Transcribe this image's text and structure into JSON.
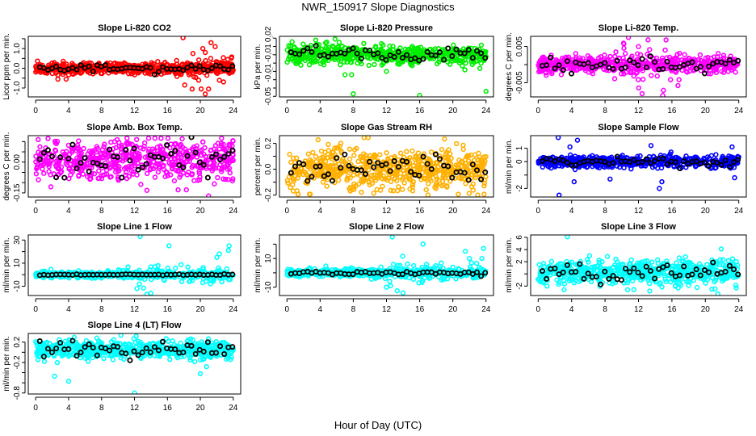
{
  "title": "NWR_150917  Slope Diagnostics",
  "xlabel": "Hour of Day (UTC)",
  "chart_data": [
    {
      "type": "scatter",
      "title": "Slope Li-820 CO2",
      "ylabel": "Licor ppm per min.",
      "color": "#ff0000",
      "xlim": [
        -0.9,
        24.9
      ],
      "xticks": [
        0,
        4,
        8,
        12,
        16,
        20,
        24
      ],
      "ylim": [
        -1.45,
        1.62
      ],
      "yticks": [
        -1.0,
        -0.5,
        0.0,
        0.5,
        1.0,
        1.5
      ],
      "ytick_labels": [
        {
          "v": -1.0,
          "t": "-1.0"
        },
        {
          "v": 0.0,
          "t": "0.0"
        },
        {
          "v": 1.0,
          "t": "1.0"
        }
      ],
      "cloud": {
        "n": 600,
        "center": 0.0,
        "sd": 0.14,
        "wide_sd": 0.3,
        "wide_hours": [
          17,
          24
        ]
      },
      "black": {
        "n": 48,
        "sd": 0.12
      },
      "outliers": [
        [
          17.9,
          1.55
        ],
        [
          21.3,
          1.3
        ],
        [
          21.8,
          1.1
        ],
        [
          20.3,
          1.0
        ],
        [
          20.6,
          0.8
        ],
        [
          19.1,
          0.75
        ],
        [
          20.6,
          -1.3
        ],
        [
          20.1,
          -1.05
        ],
        [
          21,
          -1.05
        ],
        [
          19,
          -1.05
        ],
        [
          18.1,
          -0.85
        ],
        [
          2.7,
          -0.55
        ],
        [
          3.7,
          -0.55
        ]
      ]
    },
    {
      "type": "scatter",
      "title": "Slope Li-820 Pressure",
      "ylabel": "kPa per min.",
      "color": "#00ee00",
      "xlim": [
        -0.9,
        24.9
      ],
      "xticks": [
        0,
        4,
        8,
        12,
        16,
        20,
        24
      ],
      "ylim": [
        -0.0507,
        0.0222
      ],
      "yticks": [
        0.02,
        0.01,
        0.0,
        -0.01,
        -0.02,
        -0.03,
        -0.04,
        -0.05
      ],
      "ytick_labels": [
        {
          "v": 0.02,
          "t": "0.02"
        },
        {
          "v": 0.0,
          "t": "-0.01"
        },
        {
          "v": -0.015,
          "t": "-0.01"
        },
        {
          "v": -0.05,
          "t": "-0.05"
        }
      ],
      "cloud": {
        "n": 600,
        "center": 0.0,
        "sd": 0.0055
      },
      "black": {
        "n": 48,
        "sd": 0.006
      },
      "outliers": [
        [
          5.8,
          0.019
        ],
        [
          6.3,
          0.015
        ],
        [
          7,
          -0.024
        ],
        [
          7.8,
          -0.024
        ],
        [
          8,
          -0.047
        ],
        [
          16,
          -0.049
        ],
        [
          24,
          -0.044
        ],
        [
          12,
          -0.02
        ]
      ]
    },
    {
      "type": "scatter",
      "title": "Slope Li-820 Temp.",
      "ylabel": "degrees C per min.",
      "color": "#ff00ff",
      "xlim": [
        -0.9,
        24.9
      ],
      "xticks": [
        0,
        4,
        8,
        12,
        16,
        20,
        24
      ],
      "ylim": [
        -0.0089,
        0.0078
      ],
      "yticks": [
        0.005,
        0.0,
        -0.005
      ],
      "ytick_labels": [
        {
          "v": 0.005,
          "t": "0.005"
        },
        {
          "v": -0.005,
          "t": "-0.005"
        }
      ],
      "cloud": {
        "n": 600,
        "center": 0.0,
        "sd": 0.0011,
        "wide_sd": 0.003,
        "wide_hours": [
          8,
          17
        ]
      },
      "black": {
        "n": 48,
        "sd": 0.0015
      },
      "outliers": [
        [
          10.8,
          0.0075
        ],
        [
          14.9,
          -0.0085
        ],
        [
          15.3,
          0.0068
        ]
      ]
    },
    {
      "type": "scatter",
      "title": "Slope Amb. Box Temp.",
      "ylabel": "degrees C per min.",
      "color": "#ff00ff",
      "xlim": [
        -0.9,
        24.9
      ],
      "xticks": [
        0,
        4,
        8,
        12,
        16,
        20,
        24
      ],
      "ylim": [
        -0.17,
        0.129
      ],
      "yticks": [
        0.1,
        0.05,
        0.0,
        -0.05,
        -0.1,
        -0.15
      ],
      "ytick_labels": [
        {
          "v": 0.0,
          "t": "0.00"
        },
        {
          "v": -0.15,
          "t": "-0.15"
        }
      ],
      "cloud": {
        "n": 600,
        "center": 0.01,
        "sd": 0.045
      },
      "black": {
        "n": 48,
        "sd": 0.05
      },
      "outliers": [
        [
          21,
          -0.165
        ],
        [
          17.3,
          -0.135
        ],
        [
          18.3,
          -0.135
        ],
        [
          1.5,
          0.115
        ],
        [
          0.3,
          0.11
        ]
      ]
    },
    {
      "type": "scatter",
      "title": "Slope Gas Stream RH",
      "ylabel": "percent per min.",
      "color": "#ffb000",
      "xlim": [
        -0.9,
        24.9
      ],
      "xticks": [
        0,
        4,
        8,
        12,
        16,
        20,
        24
      ],
      "ylim": [
        -0.215,
        0.26
      ],
      "yticks": [
        0.2,
        0.1,
        0.0,
        -0.1,
        -0.2
      ],
      "ytick_labels": [
        {
          "v": 0.2,
          "t": "0.2"
        },
        {
          "v": 0.0,
          "t": "0.0"
        },
        {
          "v": -0.2,
          "t": "-0.2"
        }
      ],
      "cloud": {
        "n": 600,
        "center": 0.0,
        "sd": 0.08
      },
      "black": {
        "n": 48,
        "sd": 0.07
      },
      "outliers": [
        [
          9.3,
          0.245
        ],
        [
          9.8,
          0.245
        ],
        [
          6.5,
          0.2
        ],
        [
          17,
          -0.2
        ],
        [
          23,
          -0.2
        ]
      ]
    },
    {
      "type": "scatter",
      "title": "Slope Sample Flow",
      "ylabel": "ml/min per min.",
      "color": "#0000ff",
      "xlim": [
        -0.9,
        24.9
      ],
      "xticks": [
        0,
        4,
        8,
        12,
        16,
        20,
        24
      ],
      "ylim": [
        -2.64,
        1.94
      ],
      "yticks": [
        1,
        0,
        -1,
        -2
      ],
      "ytick_labels": [
        {
          "v": 1,
          "t": "1"
        },
        {
          "v": 0,
          "t": "0"
        },
        {
          "v": -2,
          "t": "-2"
        }
      ],
      "cloud": {
        "n": 600,
        "center": 0.0,
        "sd": 0.2
      },
      "black": {
        "n": 48,
        "sd": 0.2
      },
      "outliers": [
        [
          2.5,
          -2.5
        ],
        [
          2.4,
          1.8
        ],
        [
          4.7,
          1.6
        ],
        [
          13.5,
          1.2
        ],
        [
          23.2,
          1.1
        ],
        [
          14.5,
          -2
        ],
        [
          14.8,
          -1.5
        ],
        [
          4.3,
          -1.5
        ],
        [
          8.6,
          -1.3
        ],
        [
          23.5,
          -1.2
        ],
        [
          3.8,
          1.1
        ]
      ]
    },
    {
      "type": "scatter",
      "title": "Slope Line 1 Flow",
      "ylabel": "ml/min per min.",
      "color": "#00ffff",
      "xlim": [
        -0.9,
        24.9
      ],
      "xticks": [
        0,
        4,
        8,
        12,
        16,
        20,
        24
      ],
      "ylim": [
        -18,
        34.4
      ],
      "yticks": [
        30,
        20,
        10,
        0,
        -10
      ],
      "ytick_labels": [
        {
          "v": 30,
          "t": "30"
        },
        {
          "v": 10,
          "t": "10"
        },
        {
          "v": -10,
          "t": "-10"
        }
      ],
      "cloud": {
        "n": 550,
        "center": 0.0,
        "sd": 1.3,
        "wide_sd": 3.5,
        "wide_hours": [
          10,
          24
        ]
      },
      "black": {
        "n": 48,
        "sd": 0.3
      },
      "outliers": [
        [
          12.7,
          33
        ],
        [
          16.2,
          25
        ],
        [
          23.5,
          25
        ],
        [
          23.4,
          21
        ],
        [
          13.5,
          -17
        ],
        [
          14,
          -16
        ],
        [
          12.3,
          -12
        ],
        [
          13.1,
          -11.5
        ],
        [
          12.6,
          -8
        ],
        [
          22,
          15
        ],
        [
          22.3,
          18
        ]
      ]
    },
    {
      "type": "scatter",
      "title": "Slope Line 2 Flow",
      "ylabel": "ml/min per min.",
      "color": "#00ffff",
      "xlim": [
        -0.9,
        24.9
      ],
      "xticks": [
        0,
        4,
        8,
        12,
        16,
        20,
        24
      ],
      "ylim": [
        -15.8,
        26.4
      ],
      "yticks": [
        20,
        10,
        0,
        -10
      ],
      "ytick_labels": [
        {
          "v": 10,
          "t": "10"
        },
        {
          "v": -10,
          "t": "-10"
        }
      ],
      "cloud": {
        "n": 550,
        "center": 0.0,
        "sd": 1.3,
        "wide_sd": 3.5,
        "wide_hours": [
          10,
          24
        ]
      },
      "black": {
        "n": 48,
        "sd": 0.8
      },
      "outliers": [
        [
          12.7,
          25
        ],
        [
          16.4,
          20
        ],
        [
          23.7,
          17
        ],
        [
          21.5,
          15
        ],
        [
          13.3,
          -12.5
        ],
        [
          14,
          -14
        ],
        [
          12,
          -10
        ],
        [
          12.5,
          -9
        ],
        [
          15.9,
          -7
        ],
        [
          22,
          10
        ],
        [
          23.5,
          10
        ]
      ]
    },
    {
      "type": "scatter",
      "title": "Slope Line 3 Flow",
      "ylabel": "ml/min per min.",
      "color": "#00ffff",
      "xlim": [
        -0.9,
        24.9
      ],
      "xticks": [
        0,
        4,
        8,
        12,
        16,
        20,
        24
      ],
      "ylim": [
        -3.55,
        6.4
      ],
      "yticks": [
        6,
        4,
        2,
        0,
        -2
      ],
      "ytick_labels": [
        {
          "v": 6,
          "t": "6"
        },
        {
          "v": 4,
          "t": "4"
        },
        {
          "v": 2,
          "t": "2"
        },
        {
          "v": -2,
          "t": "-2"
        }
      ],
      "cloud": {
        "n": 600,
        "center": 0.3,
        "sd": 1.0
      },
      "black": {
        "n": 48,
        "sd": 1.1
      },
      "outliers": [
        [
          3.5,
          6.1
        ],
        [
          21.9,
          4.1
        ],
        [
          21.5,
          -3.3
        ],
        [
          10.7,
          -2.6
        ]
      ]
    },
    {
      "type": "scatter",
      "title": "Slope Line 4 (LT) Flow",
      "ylabel": "ml/min per min.",
      "color": "#00ffff",
      "xlim": [
        -0.9,
        24.9
      ],
      "xticks": [
        0,
        4,
        8,
        12,
        16,
        20,
        24
      ],
      "ylim": [
        -0.82,
        0.37
      ],
      "yticks": [
        0.2,
        0.0,
        -0.2,
        -0.4,
        -0.6,
        -0.8
      ],
      "ytick_labels": [
        {
          "v": 0.2,
          "t": "0.2"
        },
        {
          "v": -0.2,
          "t": "-0.2"
        },
        {
          "v": -0.8,
          "t": "-0.8"
        }
      ],
      "cloud": {
        "n": 600,
        "center": 0.05,
        "sd": 0.09
      },
      "black": {
        "n": 48,
        "sd": 0.1
      },
      "outliers": [
        [
          12,
          -0.8
        ],
        [
          4,
          -0.57
        ],
        [
          2.3,
          -0.47
        ],
        [
          20,
          -0.42
        ]
      ]
    }
  ]
}
